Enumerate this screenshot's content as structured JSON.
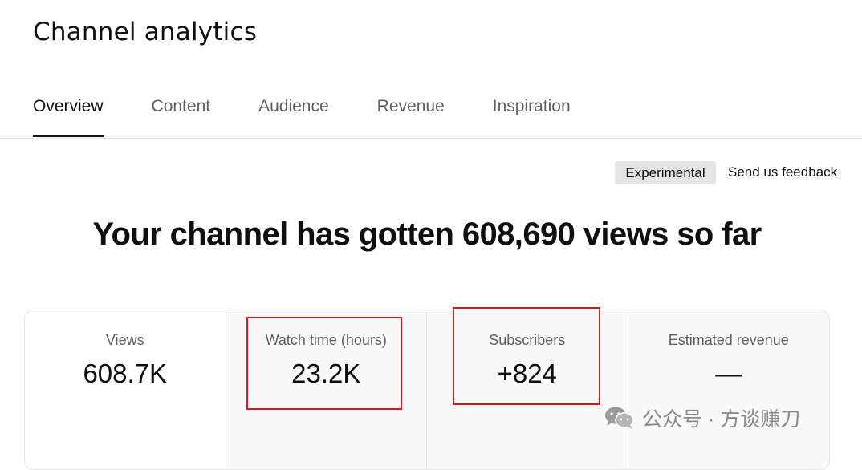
{
  "header": {
    "title": "Channel analytics"
  },
  "tabs": [
    {
      "label": "Overview",
      "active": true
    },
    {
      "label": "Content",
      "active": false
    },
    {
      "label": "Audience",
      "active": false
    },
    {
      "label": "Revenue",
      "active": false
    },
    {
      "label": "Inspiration",
      "active": false
    }
  ],
  "toolbar": {
    "experimental_label": "Experimental",
    "feedback_label": "Send us feedback"
  },
  "headline": "Your channel has gotten 608,690 views so far",
  "metrics": [
    {
      "label": "Views",
      "value": "608.7K"
    },
    {
      "label": "Watch time (hours)",
      "value": "23.2K"
    },
    {
      "label": "Subscribers",
      "value": "+824"
    },
    {
      "label": "Estimated revenue",
      "value": "—"
    }
  ],
  "watermark": {
    "text": "公众号 · 方谈赚刀",
    "icon": "wechat-icon"
  },
  "colors": {
    "highlight": "#e0121d",
    "accent": "#0f0f0f",
    "muted": "#606060"
  }
}
